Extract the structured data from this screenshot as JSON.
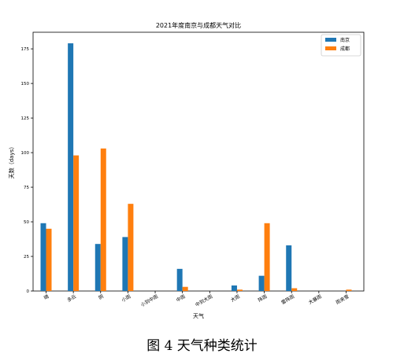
{
  "caption": "图 4 天气种类统计",
  "chart_data": {
    "type": "bar",
    "title": "2021年度南京与成都天气对比",
    "xlabel": "天气",
    "ylabel": "天数（days）",
    "categories": [
      "晴",
      "多云",
      "阴",
      "小雨",
      "小到中雨",
      "中雨",
      "中到大雨",
      "大雨",
      "阵雨",
      "雷阵雨",
      "大暴雨",
      "雨夹雪"
    ],
    "series": [
      {
        "name": "南京",
        "color": "#1f77b4",
        "values": [
          49,
          179,
          34,
          39,
          0,
          16,
          0,
          4,
          11,
          33,
          0,
          0
        ]
      },
      {
        "name": "成都",
        "color": "#ff7f0e",
        "values": [
          45,
          98,
          103,
          63,
          0,
          3,
          0,
          1,
          49,
          2,
          0,
          1
        ]
      }
    ],
    "ylim": [
      0,
      187
    ],
    "yticks": [
      0,
      25,
      50,
      75,
      100,
      125,
      150,
      175
    ],
    "grid": false,
    "legend_position": "top-right"
  }
}
